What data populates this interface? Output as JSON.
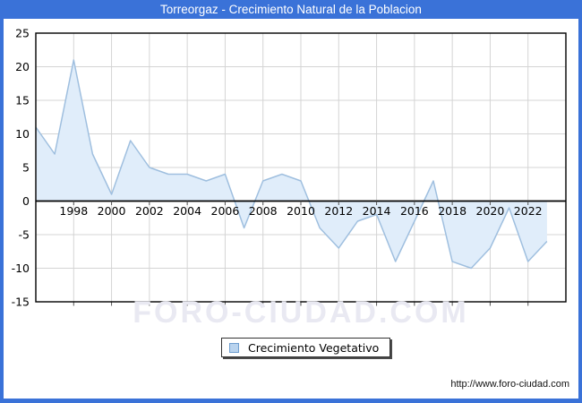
{
  "window": {
    "title": "Torreorgaz - Crecimiento Natural de la Poblacion"
  },
  "chart_data": {
    "type": "area",
    "title": "Torreorgaz - Crecimiento Natural de la Poblacion",
    "x": [
      1996,
      1997,
      1998,
      1999,
      2000,
      2001,
      2002,
      2003,
      2004,
      2005,
      2006,
      2007,
      2008,
      2009,
      2010,
      2011,
      2012,
      2013,
      2014,
      2015,
      2016,
      2017,
      2018,
      2019,
      2020,
      2021,
      2022,
      2023
    ],
    "series": [
      {
        "name": "Crecimiento Vegetativo",
        "values": [
          11,
          7,
          21,
          7,
          1,
          9,
          5,
          4,
          4,
          3,
          4,
          -4,
          3,
          4,
          3,
          -4,
          -7,
          -3,
          -2,
          -9,
          -3,
          3,
          -9,
          -10,
          -7,
          -1,
          -9,
          -6
        ]
      }
    ],
    "xlim": [
      1996,
      2024
    ],
    "ylim": [
      -15,
      25
    ],
    "y_tick_labels": [
      25,
      20,
      15,
      10,
      5,
      0,
      -5,
      -10,
      -15
    ],
    "y_gridlines": [
      20,
      15,
      10,
      5,
      -5,
      -10
    ],
    "x_tick_labels": [
      1998,
      2000,
      2002,
      2004,
      2006,
      2008,
      2010,
      2012,
      2014,
      2016,
      2018,
      2020,
      2022
    ],
    "grid": true,
    "legend_position": "bottom-center",
    "colors": {
      "titlebar": "#3a72d8",
      "line": "#9fbfdf",
      "fill": "#e0edfa",
      "grid": "#d4d4d4",
      "axis": "#000000",
      "watermark": "#e9e9f2"
    }
  },
  "legend": {
    "label": "Crecimiento Vegetativo"
  },
  "watermark": {
    "text": "FORO-CIUDAD.COM"
  },
  "footer": {
    "url": "http://www.foro-ciudad.com"
  }
}
